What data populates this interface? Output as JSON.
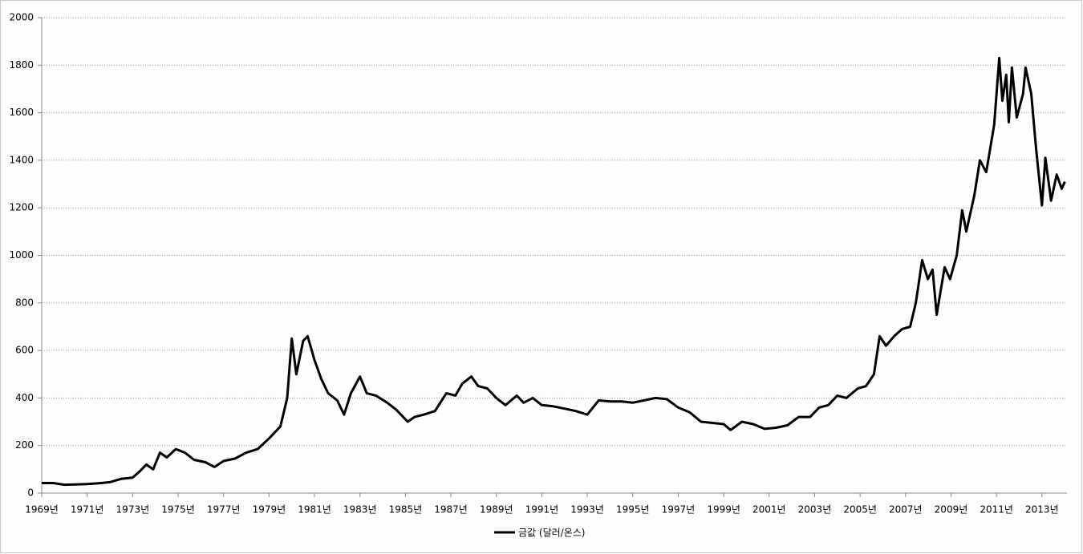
{
  "chart_data": {
    "type": "line",
    "legend_position": "bottom",
    "grid": true,
    "xlim": [
      1969,
      2014.1
    ],
    "ylim": [
      0,
      2000
    ],
    "yticks": [
      0,
      200,
      400,
      600,
      800,
      1000,
      1200,
      1400,
      1600,
      1800,
      2000
    ],
    "xticks": [
      {
        "value": 1969,
        "label": "1969년"
      },
      {
        "value": 1971,
        "label": "1971년"
      },
      {
        "value": 1973,
        "label": "1973년"
      },
      {
        "value": 1975,
        "label": "1975년"
      },
      {
        "value": 1977,
        "label": "1977년"
      },
      {
        "value": 1979,
        "label": "1979년"
      },
      {
        "value": 1981,
        "label": "1981년"
      },
      {
        "value": 1983,
        "label": "1983년"
      },
      {
        "value": 1985,
        "label": "1985년"
      },
      {
        "value": 1987,
        "label": "1987년"
      },
      {
        "value": 1989,
        "label": "1989년"
      },
      {
        "value": 1991,
        "label": "1991년"
      },
      {
        "value": 1993,
        "label": "1993년"
      },
      {
        "value": 1995,
        "label": "1995년"
      },
      {
        "value": 1997,
        "label": "1997년"
      },
      {
        "value": 1999,
        "label": "1999년"
      },
      {
        "value": 2001,
        "label": "2001년"
      },
      {
        "value": 2003,
        "label": "2003년"
      },
      {
        "value": 2005,
        "label": "2005년"
      },
      {
        "value": 2007,
        "label": "2007년"
      },
      {
        "value": 2009,
        "label": "2009년"
      },
      {
        "value": 2011,
        "label": "2011년"
      },
      {
        "value": 2013,
        "label": "2013년"
      }
    ],
    "x": [
      1969,
      1969.5,
      1970,
      1970.5,
      1971,
      1971.5,
      1972,
      1972.5,
      1973,
      1973.3,
      1973.6,
      1973.9,
      1974.2,
      1974.5,
      1974.9,
      1975.3,
      1975.7,
      1976.2,
      1976.6,
      1977,
      1977.5,
      1978,
      1978.5,
      1979,
      1979.5,
      1979.8,
      1980.0,
      1980.2,
      1980.5,
      1980.7,
      1981.0,
      1981.3,
      1981.6,
      1982.0,
      1982.3,
      1982.6,
      1983.0,
      1983.3,
      1983.7,
      1984.2,
      1984.6,
      1985.1,
      1985.4,
      1985.8,
      1986.3,
      1986.8,
      1987.2,
      1987.5,
      1987.9,
      1988.2,
      1988.6,
      1989.0,
      1989.4,
      1989.9,
      1990.2,
      1990.6,
      1991.0,
      1991.5,
      1992.0,
      1992.5,
      1993.0,
      1993.5,
      1994.0,
      1994.5,
      1995.0,
      1995.5,
      1996.0,
      1996.5,
      1997.0,
      1997.5,
      1998.0,
      1998.5,
      1999.0,
      1999.3,
      1999.8,
      2000.3,
      2000.8,
      2001.3,
      2001.8,
      2002.3,
      2002.8,
      2003.2,
      2003.6,
      2004.0,
      2004.4,
      2004.9,
      2005.26,
      2005.61,
      2005.86,
      2006.14,
      2006.5,
      2006.85,
      2007.2,
      2007.45,
      2007.73,
      2007.98,
      2008.19,
      2008.37,
      2008.72,
      2008.96,
      2009.25,
      2009.49,
      2009.67,
      2010.02,
      2010.27,
      2010.55,
      2010.9,
      2011.12,
      2011.26,
      2011.43,
      2011.54,
      2011.68,
      2011.89,
      2012.17,
      2012.28,
      2012.53,
      2012.74,
      2013.0,
      2013.15,
      2013.4,
      2013.65,
      2013.87,
      2014.01
    ],
    "series": [
      {
        "name": "금값 (달러/온스)",
        "color": "#000000",
        "values": [
          42,
          42,
          35,
          36,
          38,
          41,
          46,
          60,
          65,
          90,
          120,
          100,
          170,
          150,
          185,
          170,
          140,
          130,
          110,
          135,
          145,
          170,
          185,
          230,
          280,
          400,
          650,
          500,
          640,
          660,
          560,
          480,
          420,
          390,
          330,
          420,
          490,
          420,
          410,
          380,
          350,
          300,
          320,
          330,
          345,
          420,
          410,
          460,
          490,
          450,
          440,
          400,
          370,
          410,
          380,
          400,
          370,
          365,
          355,
          345,
          330,
          390,
          385,
          385,
          380,
          390,
          400,
          395,
          360,
          340,
          300,
          295,
          290,
          265,
          300,
          290,
          270,
          275,
          285,
          320,
          320,
          360,
          370,
          410,
          400,
          440,
          450,
          500,
          660,
          620,
          660,
          690,
          700,
          800,
          980,
          900,
          940,
          750,
          950,
          900,
          1000,
          1190,
          1100,
          1250,
          1400,
          1350,
          1550,
          1830,
          1650,
          1760,
          1560,
          1790,
          1580,
          1680,
          1790,
          1680,
          1450,
          1210,
          1410,
          1230,
          1340,
          1280,
          1310
        ]
      }
    ]
  }
}
